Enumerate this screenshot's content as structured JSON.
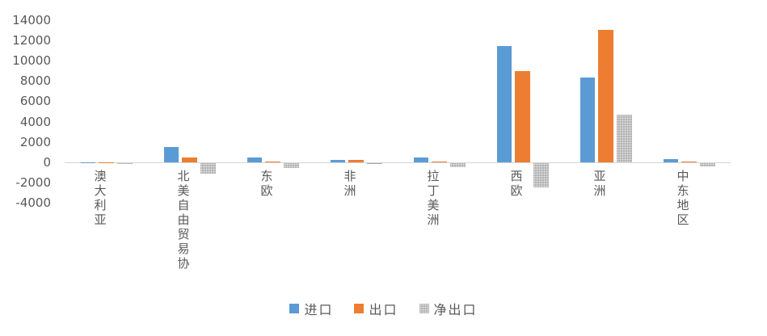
{
  "chart_data": {
    "type": "bar",
    "title": "",
    "xlabel": "",
    "ylabel": "",
    "categories": [
      "澳大利亚",
      "北美自由贸易协",
      "东欧",
      "非洲",
      "拉丁美洲",
      "西欧",
      "亚洲",
      "中东地区"
    ],
    "series": [
      {
        "key": "import",
        "name": "进口",
        "color": "#5B9BD5",
        "pattern": false,
        "values": [
          30,
          1500,
          500,
          250,
          450,
          11400,
          8300,
          350
        ]
      },
      {
        "key": "export",
        "name": "出口",
        "color": "#ED7D31",
        "pattern": false,
        "values": [
          20,
          450,
          60,
          230,
          40,
          9000,
          13000,
          50
        ]
      },
      {
        "key": "net-export",
        "name": "净出口",
        "color": "#A6A6A6",
        "pattern": true,
        "values": [
          -100,
          -1050,
          -440,
          -20,
          -400,
          -2400,
          4700,
          -300
        ]
      }
    ],
    "y_ticks": [
      14000,
      12000,
      10000,
      8000,
      6000,
      4000,
      2000,
      0,
      -2000,
      -4000
    ],
    "ylim": [
      -4000,
      14000
    ],
    "grid": false,
    "legend_position": "bottom",
    "axis_line_color": "#d6d6d6",
    "text_color": "#595959"
  }
}
